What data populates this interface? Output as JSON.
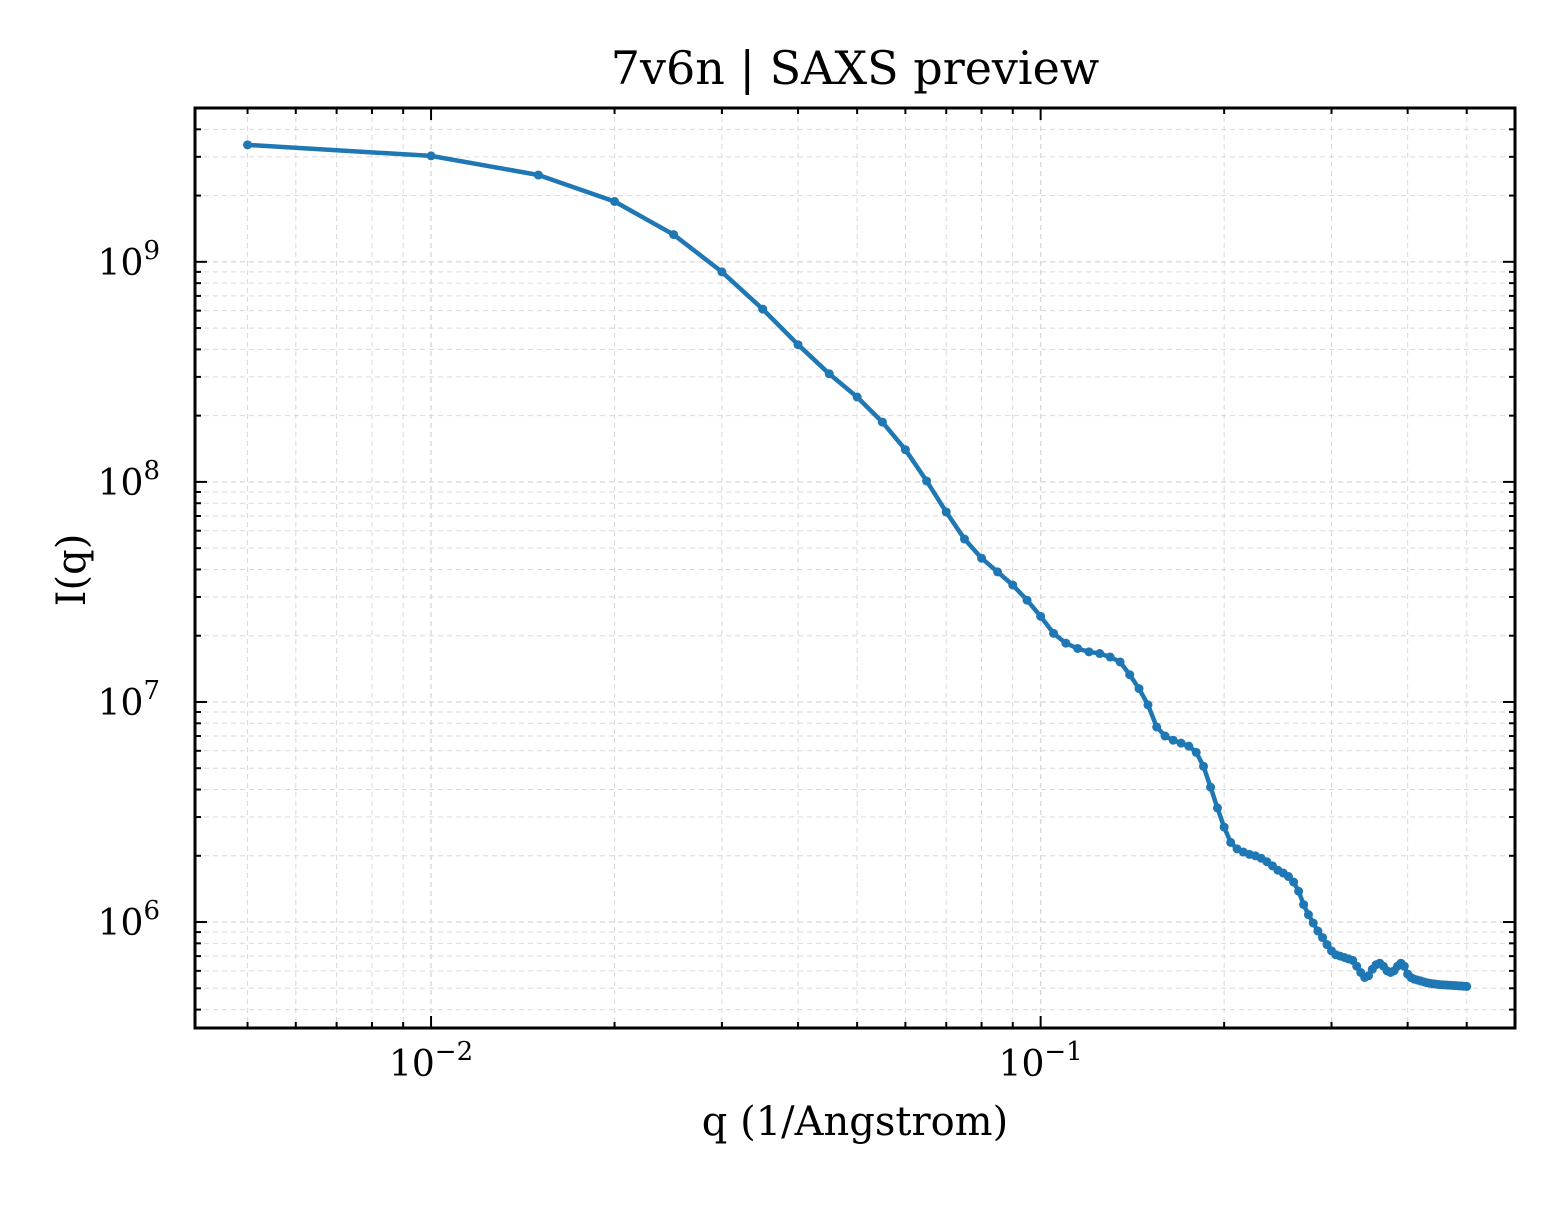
{
  "chart_data": {
    "type": "line",
    "title": "7v6n | SAXS preview",
    "xlabel": "q (1/Angstrom)",
    "ylabel": "I(q)",
    "xscale": "log",
    "yscale": "log",
    "xlim": [
      0.0041,
      0.6
    ],
    "ylim": [
      330000,
      5000000000
    ],
    "grid": true,
    "legend": "none",
    "x_ticks": [
      {
        "value": 0.01,
        "base": "10",
        "exp": "−2"
      },
      {
        "value": 0.1,
        "base": "10",
        "exp": "−1"
      }
    ],
    "y_ticks": [
      {
        "value": 1000000,
        "base": "10",
        "exp": "6"
      },
      {
        "value": 10000000,
        "base": "10",
        "exp": "7"
      },
      {
        "value": 100000000,
        "base": "10",
        "exp": "8"
      },
      {
        "value": 1000000000,
        "base": "10",
        "exp": "9"
      }
    ],
    "series": [
      {
        "color": "#1f77b4",
        "x": [
          0.005,
          0.01,
          0.015,
          0.02,
          0.025,
          0.03,
          0.035,
          0.04,
          0.045,
          0.05,
          0.055,
          0.06,
          0.065,
          0.07,
          0.075,
          0.08,
          0.085,
          0.09,
          0.095,
          0.1,
          0.105,
          0.11,
          0.115,
          0.12,
          0.125,
          0.13,
          0.135,
          0.14,
          0.145,
          0.15,
          0.155,
          0.16,
          0.165,
          0.17,
          0.175,
          0.18,
          0.185,
          0.19,
          0.195,
          0.2,
          0.205,
          0.21,
          0.215,
          0.22,
          0.225,
          0.23,
          0.235,
          0.24,
          0.245,
          0.25,
          0.255,
          0.26,
          0.265,
          0.27,
          0.275,
          0.28,
          0.285,
          0.29,
          0.295,
          0.3,
          0.305,
          0.31,
          0.315,
          0.32,
          0.325,
          0.33,
          0.335,
          0.34,
          0.345,
          0.35,
          0.355,
          0.36,
          0.365,
          0.37,
          0.375,
          0.38,
          0.385,
          0.39,
          0.395,
          0.4,
          0.405,
          0.41,
          0.415,
          0.42,
          0.425,
          0.43,
          0.435,
          0.44,
          0.445,
          0.45,
          0.455,
          0.46,
          0.465,
          0.47,
          0.475,
          0.48,
          0.485,
          0.49,
          0.495,
          0.5
        ],
        "y": [
          3400000000,
          3030000000,
          2480000000,
          1880000000,
          1330000000,
          900000000,
          610000000,
          420000000,
          310000000,
          243000000,
          187000000,
          140000000,
          101000000,
          73000000,
          55000000,
          45000000,
          39000000,
          34000000,
          29000000,
          24500000,
          20500000,
          18500000,
          17500000,
          16900000,
          16600000,
          16000000,
          15200000,
          13300000,
          11500000,
          9700000,
          7700000,
          7000000,
          6700000,
          6500000,
          6300000,
          5900000,
          5100000,
          4100000,
          3300000,
          2700000,
          2300000,
          2150000,
          2080000,
          2030000,
          2000000,
          1950000,
          1880000,
          1800000,
          1720000,
          1670000,
          1610000,
          1520000,
          1380000,
          1200000,
          1080000,
          990000,
          910000,
          850000,
          790000,
          740000,
          710000,
          700000,
          690000,
          680000,
          670000,
          630000,
          590000,
          560000,
          570000,
          610000,
          640000,
          650000,
          630000,
          600000,
          590000,
          600000,
          630000,
          650000,
          630000,
          580000,
          560000,
          550000,
          545000,
          540000,
          535000,
          530000,
          527000,
          524000,
          522000,
          520000,
          519000,
          518000,
          517000,
          516000,
          515000,
          514000,
          513000,
          512000,
          511000,
          510000
        ]
      }
    ]
  }
}
